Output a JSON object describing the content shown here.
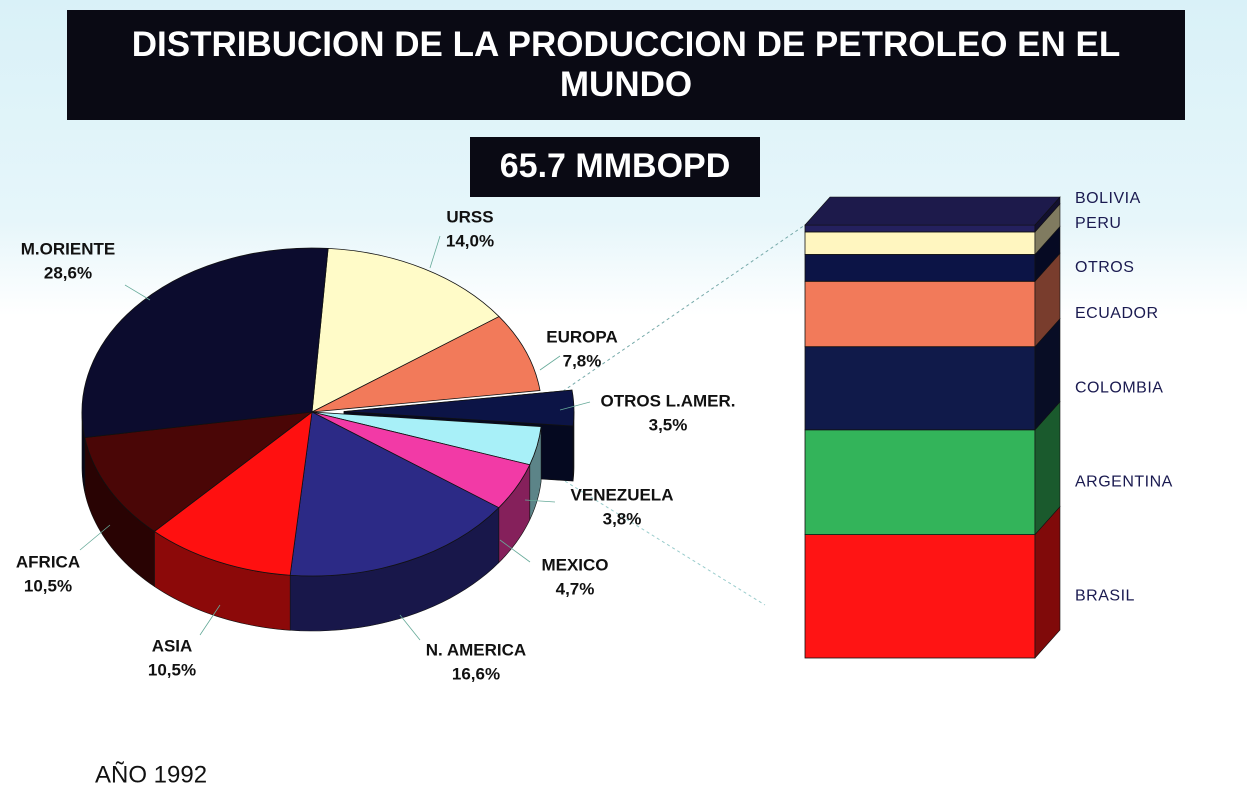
{
  "header": {
    "title": "DISTRIBUCION DE LA PRODUCCION DE PETROLEO EN EL MUNDO",
    "subtitle": "65.7 MMBOPD"
  },
  "footnote": "AÑO 1992",
  "chart_data": [
    {
      "type": "pie",
      "categories": [
        "URSS",
        "EUROPA",
        "OTROS L.AMER.",
        "VENEZUELA",
        "MEXICO",
        "N. AMERICA",
        "ASIA",
        "AFRICA",
        "M.ORIENTE"
      ],
      "values": [
        14.0,
        7.8,
        3.5,
        3.8,
        4.7,
        16.6,
        10.5,
        10.5,
        28.6
      ],
      "value_labels": [
        "14,0%",
        "7,8%",
        "3,5%",
        "3,8%",
        "4,7%",
        "16,6%",
        "10,5%",
        "10,5%",
        "28,6%"
      ],
      "colors": [
        "#fffbc8",
        "#f27a5a",
        "#0c1446",
        "#a8f0f8",
        "#f23aa6",
        "#2c2a86",
        "#ff1010",
        "#4a0606",
        "#0c0c2e"
      ],
      "exploded": 2
    },
    {
      "type": "stacked_bar",
      "categories": [
        "BOLIVIA",
        "PERU",
        "OTROS",
        "ECUADOR",
        "COLOMBIA",
        "ARGENTINA",
        "BRASIL"
      ],
      "values": [
        1.6,
        5.2,
        6.2,
        15.1,
        19.2,
        24.2,
        28.5
      ],
      "colors": [
        "#24205e",
        "#fff6c0",
        "#0c1446",
        "#f27a5a",
        "#101a4a",
        "#33b45a",
        "#ff1414"
      ]
    }
  ]
}
